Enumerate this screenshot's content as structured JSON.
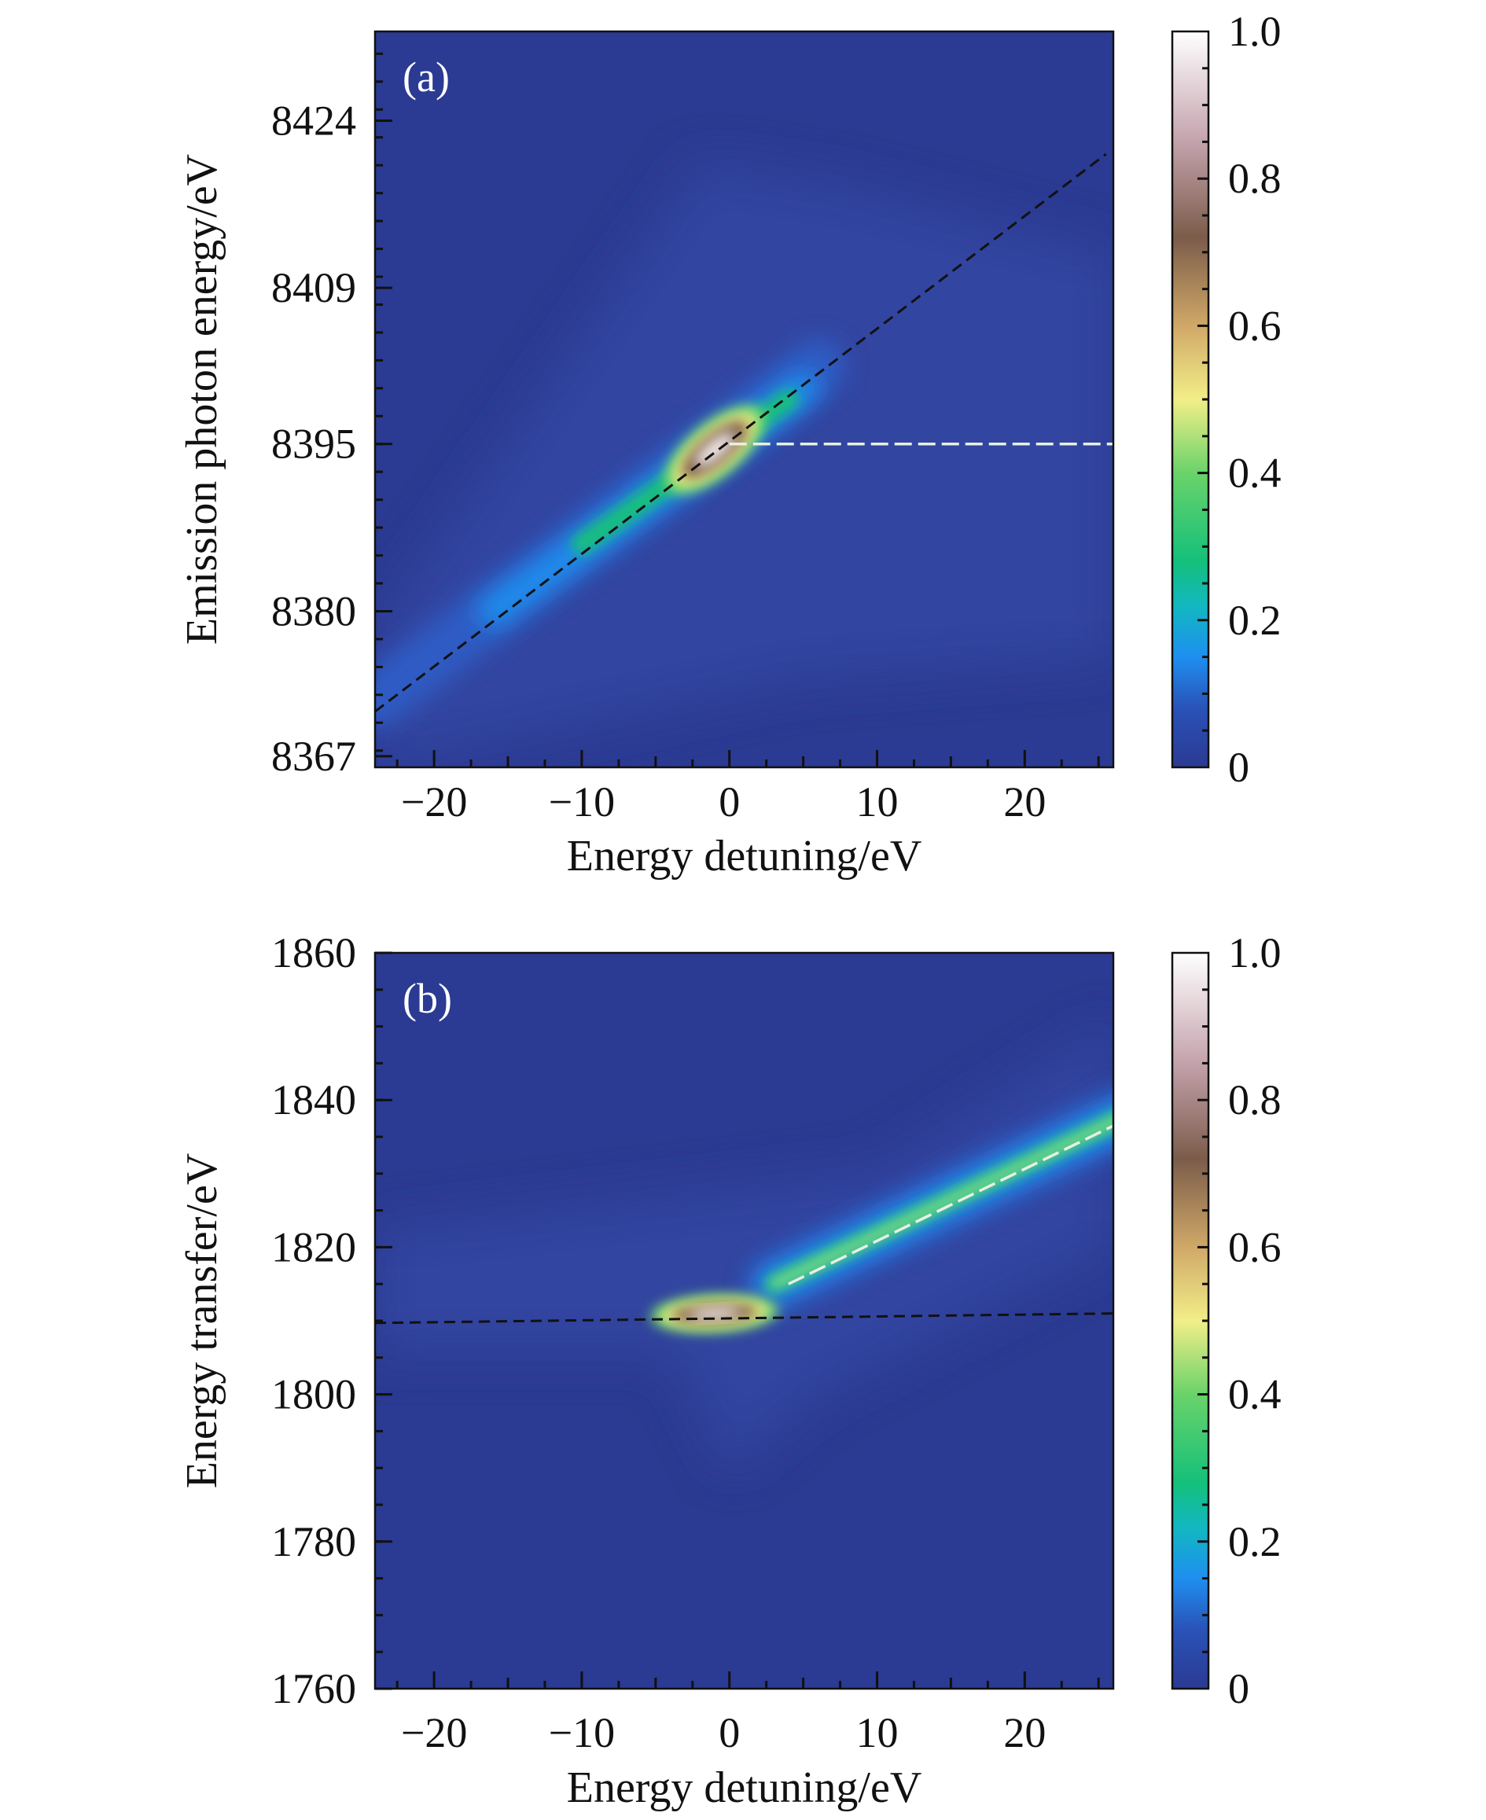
{
  "chart_data": [
    {
      "type": "heatmap",
      "panel_label": "(a)",
      "xlabel": "Energy detuning/eV",
      "ylabel": "Emission photon energy/eV",
      "xlim": [
        -24,
        26
      ],
      "ylim": [
        8366,
        8432
      ],
      "xticks": [
        -20,
        -10,
        0,
        10,
        20
      ],
      "xtick_labels": [
        "−20",
        "−10",
        "0",
        "10",
        "20"
      ],
      "yticks": [
        8367,
        8380,
        8395,
        8409,
        8424
      ],
      "ytick_labels": [
        "8367",
        "8380",
        "8395",
        "8409",
        "8424"
      ],
      "colorbar": {
        "range": [
          0,
          1
        ],
        "ticks": [
          0,
          0.2,
          0.4,
          0.6,
          0.8,
          1.0
        ],
        "tick_labels": [
          "0",
          "0.2",
          "0.4",
          "0.6",
          "0.8",
          "1.0"
        ]
      },
      "peak": {
        "x": -1,
        "y": 8394.5,
        "value": 1.0
      },
      "black_dashed_line": {
        "from": [
          -24,
          8371
        ],
        "to": [
          25.5,
          8421
        ]
      },
      "white_dashed_line": {
        "from": [
          0,
          8395
        ],
        "to": [
          26,
          8395
        ]
      }
    },
    {
      "type": "heatmap",
      "panel_label": "(b)",
      "xlabel": "Energy detuning/eV",
      "ylabel": "Energy transfer/eV",
      "xlim": [
        -24,
        26
      ],
      "ylim": [
        1760,
        1860
      ],
      "xticks": [
        -20,
        -10,
        0,
        10,
        20
      ],
      "xtick_labels": [
        "−20",
        "−10",
        "0",
        "10",
        "20"
      ],
      "yticks": [
        1760,
        1780,
        1800,
        1820,
        1840,
        1860
      ],
      "ytick_labels": [
        "1760",
        "1780",
        "1800",
        "1820",
        "1840",
        "1860"
      ],
      "colorbar": {
        "range": [
          0,
          1
        ],
        "ticks": [
          0,
          0.2,
          0.4,
          0.6,
          0.8,
          1.0
        ],
        "tick_labels": [
          "0",
          "0.2",
          "0.4",
          "0.6",
          "0.8",
          "1.0"
        ]
      },
      "peak": {
        "x": -1,
        "y": 1811,
        "value": 1.0
      },
      "black_dashed_line": {
        "from": [
          -24,
          1809.7
        ],
        "to": [
          26,
          1811
        ]
      },
      "white_dashed_line": {
        "from": [
          4,
          1815
        ],
        "to": [
          26,
          1836.5
        ]
      }
    }
  ],
  "colors": {
    "background": "#2b3a92",
    "c0": "#2b3a92",
    "c015": "#1e8ff0",
    "c025": "#14c07a",
    "c04": "#6ad36a",
    "c05": "#f2ee88",
    "c06": "#d0a868",
    "c07": "#7b5c4a",
    "c085": "#c4a2ac",
    "c1": "#ffffff"
  }
}
